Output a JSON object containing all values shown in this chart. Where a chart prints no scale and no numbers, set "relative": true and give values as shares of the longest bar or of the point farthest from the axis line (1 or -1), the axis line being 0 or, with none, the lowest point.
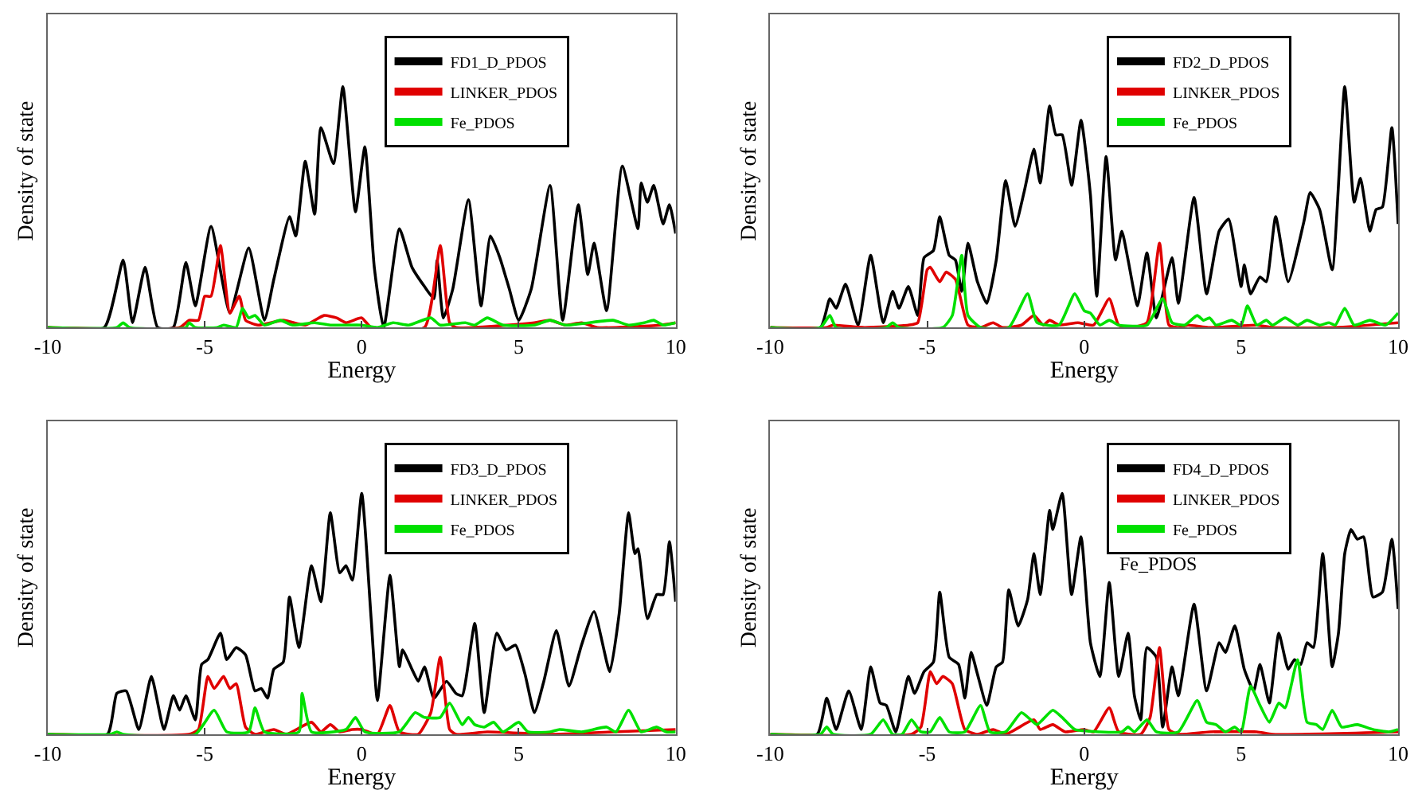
{
  "chart_data": [
    {
      "type": "line",
      "xlabel": "Energy",
      "ylabel": "Density of state",
      "relative": true,
      "xlim": [
        -10,
        10
      ],
      "xticks": [
        -10,
        -5,
        0,
        5,
        10
      ],
      "legend": "top right",
      "series": [
        {
          "name": "FD1_D_PDOS",
          "color": "#000000",
          "x": [
            -10,
            -8.2,
            -7.6,
            -7.3,
            -6.9,
            -6.5,
            -6.0,
            -5.6,
            -5.3,
            -4.8,
            -4.2,
            -3.6,
            -3.1,
            -2.8,
            -2.3,
            -2.1,
            -1.8,
            -1.5,
            -1.3,
            -0.9,
            -0.6,
            -0.2,
            0.1,
            0.4,
            0.7,
            1.2,
            1.6,
            2.0,
            2.3,
            2.4,
            2.6,
            2.9,
            3.4,
            3.8,
            4.1,
            4.4,
            4.7,
            5.0,
            5.4,
            6.0,
            6.4,
            6.9,
            7.2,
            7.4,
            7.8,
            8.3,
            8.8,
            8.9,
            9.1,
            9.3,
            9.6,
            9.8,
            10
          ],
          "values": [
            0,
            0,
            0.28,
            0.02,
            0.25,
            0,
            0,
            0.27,
            0.09,
            0.42,
            0.06,
            0.33,
            0.03,
            0.2,
            0.46,
            0.38,
            0.69,
            0.47,
            0.83,
            0.68,
            1,
            0.48,
            0.75,
            0.25,
            0,
            0.41,
            0.25,
            0.17,
            0.12,
            0.28,
            0.04,
            0.16,
            0.53,
            0.09,
            0.38,
            0.29,
            0.16,
            0.03,
            0.16,
            0.59,
            0.03,
            0.51,
            0.22,
            0.35,
            0.07,
            0.67,
            0.41,
            0.6,
            0.52,
            0.59,
            0.43,
            0.51,
            0.39
          ]
        },
        {
          "name": "LINKER_PDOS",
          "color": "#e00000",
          "x": [
            -10,
            -5.8,
            -5.5,
            -5.2,
            -5.0,
            -4.8,
            -4.5,
            -4.2,
            -3.9,
            -3.7,
            -3.3,
            -2.5,
            -1.8,
            -1.2,
            -0.8,
            -0.5,
            0,
            0.3,
            2.0,
            2.5,
            2.8,
            3.0,
            5.5,
            6.0,
            6.5,
            7.0,
            7.5,
            9.5,
            10
          ],
          "values": [
            0,
            0,
            0.03,
            0.03,
            0.13,
            0.13,
            0.34,
            0.06,
            0.13,
            0.03,
            0.01,
            0.03,
            0.01,
            0.05,
            0.04,
            0.02,
            0.04,
            0,
            0,
            0.34,
            0.02,
            0,
            0.02,
            0.03,
            0.01,
            0.02,
            0,
            0.01,
            0.02
          ]
        },
        {
          "name": "Fe_PDOS",
          "color": "#00e000",
          "x": [
            -10,
            -7.8,
            -7.6,
            -7.4,
            -5.6,
            -5.5,
            -5.3,
            -4.6,
            -4.4,
            -4.0,
            -3.8,
            -3.6,
            -3.4,
            -3.1,
            -2.6,
            -2.2,
            -1.5,
            -1,
            0,
            0.5,
            1,
            1.5,
            2.2,
            2.5,
            3.3,
            3.6,
            4.0,
            4.5,
            5.5,
            6.0,
            6.5,
            8.0,
            8.5,
            9.0,
            9.3,
            9.6,
            10
          ],
          "values": [
            0,
            0,
            0.02,
            0,
            0,
            0.02,
            0,
            0,
            0.01,
            0,
            0.08,
            0.04,
            0.05,
            0.01,
            0.03,
            0.01,
            0.02,
            0.01,
            0.01,
            0,
            0.02,
            0.01,
            0.04,
            0.01,
            0.02,
            0.01,
            0.04,
            0.01,
            0.01,
            0.03,
            0.01,
            0.03,
            0.01,
            0.02,
            0.03,
            0.01,
            0.02
          ]
        }
      ]
    },
    {
      "type": "line",
      "xlabel": "Energy",
      "ylabel": "Density of state",
      "relative": true,
      "xlim": [
        -10,
        10
      ],
      "xticks": [
        -10,
        -5,
        0,
        5,
        10
      ],
      "legend": "top right",
      "series": [
        {
          "name": "FD2_D_PDOS",
          "color": "#000000",
          "x": [
            -10,
            -8.4,
            -8.1,
            -7.9,
            -7.6,
            -7.2,
            -6.8,
            -6.4,
            -6.1,
            -5.9,
            -5.6,
            -5.3,
            -5.1,
            -4.8,
            -4.6,
            -4.3,
            -4.1,
            -3.9,
            -3.7,
            -3.4,
            -3.1,
            -2.8,
            -2.5,
            -2.2,
            -1.9,
            -1.6,
            -1.4,
            -1.1,
            -0.9,
            -0.7,
            -0.4,
            -0.1,
            0.2,
            0.4,
            0.7,
            1.0,
            1.2,
            1.4,
            1.7,
            2.0,
            2.3,
            2.8,
            3.0,
            3.5,
            3.9,
            4.3,
            4.6,
            5.0,
            5.1,
            5.3,
            5.6,
            5.8,
            6.1,
            6.5,
            7.0,
            7.2,
            7.5,
            7.9,
            8.3,
            8.6,
            8.8,
            9.1,
            9.3,
            9.5,
            9.8,
            10
          ],
          "values": [
            0,
            0,
            0.12,
            0.08,
            0.18,
            0.01,
            0.3,
            0.02,
            0.15,
            0.08,
            0.17,
            0.05,
            0.29,
            0.32,
            0.46,
            0.3,
            0.28,
            0.15,
            0.35,
            0.19,
            0.1,
            0.28,
            0.61,
            0.42,
            0.57,
            0.74,
            0.6,
            0.92,
            0.8,
            0.8,
            0.59,
            0.86,
            0.55,
            0.13,
            0.71,
            0.28,
            0.4,
            0.28,
            0.09,
            0.31,
            0.04,
            0.29,
            0.1,
            0.54,
            0.14,
            0.4,
            0.45,
            0.17,
            0.26,
            0.14,
            0.21,
            0.19,
            0.46,
            0.19,
            0.44,
            0.56,
            0.49,
            0.24,
            1,
            0.52,
            0.62,
            0.4,
            0.49,
            0.5,
            0.83,
            0.43
          ]
        },
        {
          "name": "LINKER_PDOS",
          "color": "#e00000",
          "x": [
            -10,
            -8.2,
            -8,
            -7,
            -5.6,
            -5.3,
            -5.0,
            -4.9,
            -4.6,
            -4.4,
            -4.1,
            -3.7,
            -3.3,
            -2.9,
            -2.6,
            -2,
            -1.6,
            -1.3,
            -1.1,
            -0.8,
            -0.2,
            0.3,
            0.8,
            1.1,
            1.5,
            2.0,
            2.4,
            2.7,
            3.0,
            3.3,
            4,
            5.5,
            6,
            8,
            10
          ],
          "values": [
            0,
            0,
            0.01,
            0,
            0.01,
            0.02,
            0.24,
            0.25,
            0.19,
            0.23,
            0.2,
            0.01,
            0,
            0.02,
            0,
            0.01,
            0.05,
            0.01,
            0.03,
            0.01,
            0.02,
            0.01,
            0.12,
            0.01,
            0,
            0.02,
            0.35,
            0.01,
            0,
            0.01,
            0,
            0.01,
            0,
            0,
            0.02
          ]
        },
        {
          "name": "Fe_PDOS",
          "color": "#00e000",
          "x": [
            -10,
            -8.4,
            -8.1,
            -7.9,
            -6.3,
            -6.1,
            -5.9,
            -4.5,
            -4.2,
            -3.9,
            -3.7,
            -3.3,
            -2.4,
            -1.8,
            -1.5,
            -0.8,
            -0.3,
            0,
            0.2,
            0.5,
            0.8,
            1.1,
            2.0,
            2.5,
            2.8,
            3.2,
            3.6,
            3.8,
            4.0,
            4.2,
            4.7,
            5.0,
            5.2,
            5.5,
            5.8,
            6.0,
            6.4,
            6.8,
            7.1,
            7.5,
            7.8,
            8.0,
            8.3,
            8.6,
            9.1,
            9.6,
            10
          ],
          "values": [
            0,
            0,
            0.05,
            0,
            0,
            0.02,
            0,
            0,
            0.05,
            0.3,
            0.05,
            0,
            0,
            0.14,
            0.02,
            0.01,
            0.14,
            0.07,
            0.06,
            0.01,
            0.03,
            0.01,
            0.01,
            0.12,
            0.02,
            0.01,
            0.05,
            0.03,
            0.04,
            0.01,
            0.03,
            0.01,
            0.09,
            0.01,
            0.03,
            0.01,
            0.04,
            0.01,
            0.03,
            0.01,
            0.02,
            0.01,
            0.08,
            0.01,
            0.03,
            0.01,
            0.06
          ]
        }
      ]
    },
    {
      "type": "line",
      "xlabel": "Energy",
      "ylabel": "Density of state",
      "relative": true,
      "xlim": [
        -10,
        10
      ],
      "xticks": [
        -10,
        -5,
        0,
        5,
        10
      ],
      "legend": "top right",
      "series": [
        {
          "name": "FD3_D_PDOS",
          "color": "#000000",
          "x": [
            -10,
            -8.1,
            -7.8,
            -7.5,
            -7.1,
            -6.7,
            -6.3,
            -6.0,
            -5.8,
            -5.6,
            -5.3,
            -5.1,
            -4.9,
            -4.5,
            -4.3,
            -4.0,
            -3.7,
            -3.4,
            -3.2,
            -3.0,
            -2.8,
            -2.5,
            -2.3,
            -2.0,
            -1.6,
            -1.3,
            -1.0,
            -0.7,
            -0.5,
            -0.3,
            0.0,
            0.3,
            0.5,
            0.9,
            1.2,
            1.3,
            1.6,
            1.8,
            2.0,
            2.3,
            2.7,
            3.0,
            3.2,
            3.6,
            3.9,
            4.3,
            4.6,
            4.9,
            5.2,
            5.5,
            5.8,
            6.2,
            6.6,
            7.0,
            7.4,
            7.9,
            8.2,
            8.5,
            8.7,
            8.8,
            9.1,
            9.4,
            9.6,
            9.8,
            10
          ],
          "values": [
            0,
            0,
            0.17,
            0.18,
            0.02,
            0.24,
            0.02,
            0.16,
            0.1,
            0.16,
            0.06,
            0.29,
            0.31,
            0.42,
            0.31,
            0.36,
            0.33,
            0.18,
            0.19,
            0.15,
            0.27,
            0.3,
            0.57,
            0.36,
            0.7,
            0.55,
            0.92,
            0.67,
            0.7,
            0.64,
            1,
            0.48,
            0.14,
            0.66,
            0.28,
            0.35,
            0.27,
            0.22,
            0.28,
            0.15,
            0.22,
            0.17,
            0.16,
            0.46,
            0.09,
            0.42,
            0.35,
            0.37,
            0.25,
            0.09,
            0.22,
            0.43,
            0.2,
            0.37,
            0.51,
            0.26,
            0.5,
            0.92,
            0.75,
            0.77,
            0.48,
            0.58,
            0.58,
            0.8,
            0.55
          ]
        },
        {
          "name": "LINKER_PDOS",
          "color": "#e00000",
          "x": [
            -10,
            -5.5,
            -5.2,
            -4.9,
            -4.7,
            -4.4,
            -4.2,
            -4.0,
            -3.7,
            -3.4,
            -2.8,
            -2.4,
            -1.6,
            -1.3,
            -1.0,
            -0.7,
            -0.3,
            0,
            0.5,
            0.9,
            1.2,
            1.8,
            2.2,
            2.5,
            2.8,
            3.0,
            4,
            6,
            8,
            10
          ],
          "values": [
            0,
            0,
            0.02,
            0.24,
            0.19,
            0.24,
            0.19,
            0.21,
            0.03,
            0,
            0.02,
            0,
            0.05,
            0.01,
            0.04,
            0.01,
            0.02,
            0.02,
            0,
            0.12,
            0.01,
            0,
            0.09,
            0.32,
            0.02,
            0,
            0.01,
            0,
            0.01,
            0.02
          ]
        },
        {
          "name": "Fe_PDOS",
          "color": "#00e000",
          "x": [
            -10,
            -8.0,
            -7.8,
            -7.6,
            -5.3,
            -4.7,
            -4.3,
            -3.6,
            -3.4,
            -3.1,
            -2.0,
            -1.9,
            -1.6,
            -0.5,
            -0.2,
            0.1,
            1.2,
            1.7,
            2.0,
            2.5,
            2.8,
            3.2,
            3.4,
            3.6,
            3.9,
            4.2,
            4.5,
            5.0,
            5.3,
            6.0,
            6.3,
            7.0,
            7.8,
            8.1,
            8.5,
            8.9,
            9.4,
            9.7,
            10
          ],
          "values": [
            0,
            0,
            0.01,
            0,
            0,
            0.1,
            0.01,
            0.01,
            0.11,
            0.01,
            0.01,
            0.17,
            0.01,
            0.02,
            0.07,
            0.01,
            0.01,
            0.09,
            0.07,
            0.07,
            0.13,
            0.04,
            0.07,
            0.04,
            0.03,
            0.05,
            0.01,
            0.05,
            0.01,
            0.01,
            0.02,
            0.01,
            0.03,
            0.01,
            0.1,
            0.01,
            0.03,
            0.01,
            0.01
          ]
        }
      ]
    },
    {
      "type": "line",
      "xlabel": "Energy",
      "ylabel": "Density of state",
      "relative": true,
      "xlim": [
        -10,
        10
      ],
      "xticks": [
        -10,
        -5,
        0,
        5,
        10
      ],
      "legend": "top right",
      "annotations": [
        "Fe_PDOS"
      ],
      "series": [
        {
          "name": "FD4_D_PDOS",
          "color": "#000000",
          "x": [
            -10,
            -8.5,
            -8.2,
            -7.9,
            -7.5,
            -7.1,
            -6.8,
            -6.5,
            -6.3,
            -6.0,
            -5.6,
            -5.4,
            -5.1,
            -4.8,
            -4.6,
            -4.3,
            -4.0,
            -3.8,
            -3.6,
            -3.4,
            -3.1,
            -2.8,
            -2.6,
            -2.4,
            -2.1,
            -1.8,
            -1.6,
            -1.4,
            -1.1,
            -1.0,
            -0.7,
            -0.4,
            -0.1,
            0.2,
            0.5,
            0.8,
            1.1,
            1.4,
            1.6,
            1.8,
            2.0,
            2.3,
            2.5,
            2.8,
            3.0,
            3.5,
            3.9,
            4.3,
            4.5,
            4.8,
            5.1,
            5.4,
            5.6,
            5.9,
            6.2,
            6.5,
            6.7,
            6.9,
            7.1,
            7.3,
            7.6,
            7.9,
            8.1,
            8.3,
            8.5,
            8.7,
            8.9,
            9.2,
            9.5,
            9.8,
            10
          ],
          "values": [
            0,
            0,
            0.15,
            0.02,
            0.18,
            0.02,
            0.28,
            0.13,
            0.12,
            0.01,
            0.24,
            0.17,
            0.26,
            0.3,
            0.59,
            0.32,
            0.29,
            0.15,
            0.34,
            0.25,
            0.12,
            0.28,
            0.3,
            0.6,
            0.45,
            0.56,
            0.75,
            0.58,
            0.93,
            0.85,
            1,
            0.58,
            0.82,
            0.38,
            0.24,
            0.63,
            0.24,
            0.42,
            0.16,
            0.06,
            0.36,
            0.32,
            0.03,
            0.28,
            0.16,
            0.54,
            0.18,
            0.38,
            0.34,
            0.45,
            0.27,
            0.18,
            0.29,
            0.13,
            0.42,
            0.27,
            0.31,
            0.29,
            0.38,
            0.36,
            0.75,
            0.28,
            0.42,
            0.75,
            0.85,
            0.81,
            0.82,
            0.57,
            0.59,
            0.81,
            0.52
          ]
        },
        {
          "name": "LINKER_PDOS",
          "color": "#e00000",
          "x": [
            -10,
            -5.5,
            -5.2,
            -4.9,
            -4.7,
            -4.5,
            -4.2,
            -3.8,
            -3.4,
            -2.9,
            -2.5,
            -1.6,
            -1.4,
            -1.0,
            -0.6,
            0,
            0.3,
            0.8,
            1.1,
            1.8,
            2.1,
            2.4,
            2.7,
            3,
            4,
            5.5,
            6,
            10
          ],
          "values": [
            0,
            0,
            0.03,
            0.26,
            0.21,
            0.24,
            0.21,
            0.02,
            0,
            0.02,
            0,
            0.06,
            0.02,
            0.04,
            0.01,
            0.02,
            0.01,
            0.11,
            0.01,
            0,
            0.07,
            0.36,
            0.02,
            0,
            0.01,
            0.01,
            0,
            0.01
          ]
        },
        {
          "name": "Fe_PDOS",
          "color": "#00e000",
          "x": [
            -10,
            -8.4,
            -8.2,
            -8.0,
            -6.8,
            -6.4,
            -6.1,
            -5.8,
            -5.5,
            -5.2,
            -4.9,
            -4.6,
            -4.3,
            -3.8,
            -3.3,
            -3.0,
            -2.5,
            -2.0,
            -1.7,
            -1.5,
            -1.0,
            -0.7,
            -0.3,
            0.5,
            1.2,
            1.4,
            1.6,
            2.0,
            2.3,
            3.0,
            3.6,
            3.9,
            4.2,
            4.5,
            4.8,
            5.0,
            5.3,
            5.6,
            5.9,
            6.2,
            6.4,
            6.8,
            7.1,
            7.4,
            7.6,
            7.9,
            8.2,
            8.7,
            9.2,
            9.7,
            10
          ],
          "values": [
            0,
            0,
            0.03,
            0,
            0,
            0.06,
            0,
            0,
            0.06,
            0.01,
            0.01,
            0.07,
            0.01,
            0.01,
            0.12,
            0.01,
            0.01,
            0.09,
            0.06,
            0.04,
            0.1,
            0.07,
            0.02,
            0.01,
            0.01,
            0.03,
            0.01,
            0.06,
            0.01,
            0.01,
            0.14,
            0.05,
            0.04,
            0.01,
            0.03,
            0.01,
            0.2,
            0.12,
            0.05,
            0.13,
            0.11,
            0.31,
            0.05,
            0.04,
            0.02,
            0.1,
            0.03,
            0.04,
            0.02,
            0.01,
            0.02
          ]
        }
      ]
    }
  ]
}
